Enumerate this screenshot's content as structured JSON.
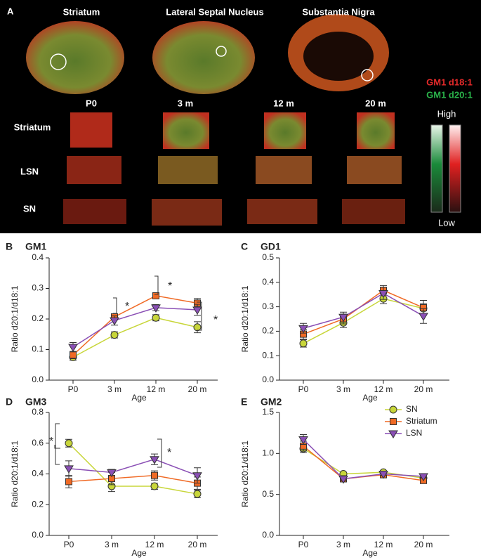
{
  "panel_a": {
    "label": "A",
    "regions": [
      "Striatum",
      "Lateral Septal Nucleus",
      "Substantia Nigra"
    ],
    "stains": [
      "GM1 d18:1",
      "GM1 d20:1"
    ],
    "ages": [
      "P0",
      "3 m",
      "12 m",
      "20 m"
    ],
    "rows": [
      "Striatum",
      "LSN",
      "SN"
    ],
    "scale": [
      "High",
      "Low"
    ]
  },
  "chart_data": [
    {
      "type": "line",
      "panel": "B",
      "title": "GM1",
      "x_label": "Age",
      "y_label": "Ratio d20:1/d18:1",
      "categories": [
        "P0",
        "3 m",
        "12 m",
        "20 m"
      ],
      "series": [
        {
          "color": "#c8d63a",
          "marker": "circle",
          "values": [
            0.075,
            0.148,
            0.204,
            0.173
          ],
          "errors": [
            0.01,
            0.01,
            0.01,
            0.018
          ]
        },
        {
          "color": "#f06a25",
          "marker": "square",
          "values": [
            0.082,
            0.207,
            0.276,
            0.252
          ],
          "errors": [
            0.012,
            0.01,
            0.008,
            0.015
          ]
        },
        {
          "color": "#8a4fb5",
          "marker": "triangle",
          "values": [
            0.108,
            0.195,
            0.237,
            0.23
          ],
          "errors": [
            0.015,
            0.015,
            0.01,
            0.018
          ]
        }
      ],
      "ylim": [
        0,
        0.4
      ],
      "yticks": [
        {
          "value": 0,
          "label": "0.0"
        },
        0.1,
        0.2,
        0.3,
        0.4
      ],
      "annotations": [
        "*",
        "*",
        "*"
      ]
    },
    {
      "type": "line",
      "panel": "C",
      "title": "GD1",
      "x_label": "Age",
      "y_label": "Ratio d20:1/d18:1",
      "categories": [
        "P0",
        "3 m",
        "12 m",
        "20 m"
      ],
      "series": [
        {
          "color": "#c8d63a",
          "marker": "circle",
          "values": [
            0.15,
            0.235,
            0.333,
            0.293
          ],
          "errors": [
            0.015,
            0.02,
            0.02,
            0.02
          ]
        },
        {
          "color": "#f06a25",
          "marker": "square",
          "values": [
            0.188,
            0.25,
            0.367,
            0.296
          ],
          "errors": [
            0.02,
            0.02,
            0.02,
            0.03
          ]
        },
        {
          "color": "#8a4fb5",
          "marker": "triangle",
          "values": [
            0.212,
            0.258,
            0.355,
            0.262
          ],
          "errors": [
            0.02,
            0.02,
            0.025,
            0.03
          ]
        }
      ],
      "ylim": [
        0,
        0.5
      ],
      "yticks": [
        {
          "value": 0,
          "label": "0.0"
        },
        0.1,
        0.2,
        0.3,
        0.4,
        0.5
      ]
    },
    {
      "type": "line",
      "panel": "D",
      "title": "GM3",
      "x_label": "Age",
      "y_label": "Ratio d20:1/d18:1",
      "categories": [
        "P0",
        "3 m",
        "12 m",
        "20 m"
      ],
      "series": [
        {
          "color": "#c8d63a",
          "marker": "circle",
          "values": [
            0.6,
            0.32,
            0.32,
            0.27
          ],
          "errors": [
            0.025,
            0.035,
            0.02,
            0.025
          ]
        },
        {
          "color": "#f06a25",
          "marker": "square",
          "values": [
            0.35,
            0.37,
            0.39,
            0.34
          ],
          "errors": [
            0.04,
            0.04,
            0.03,
            0.04
          ]
        },
        {
          "color": "#8a4fb5",
          "marker": "triangle",
          "values": [
            0.435,
            0.41,
            0.495,
            0.39
          ],
          "errors": [
            0.05,
            0.02,
            0.035,
            0.05
          ]
        }
      ],
      "ylim": [
        0,
        0.8
      ],
      "yticks": [
        {
          "value": 0,
          "label": "0.0"
        },
        0.2,
        0.4,
        0.6,
        0.8
      ],
      "annotations": [
        "*",
        "*"
      ]
    },
    {
      "type": "line",
      "panel": "E",
      "title": "GM2",
      "x_label": "Age",
      "y_label": "Ratio d20:1/d18:1",
      "categories": [
        "P0",
        "3 m",
        "12 m",
        "20 m"
      ],
      "series": [
        {
          "name": "SN",
          "color": "#c8d63a",
          "marker": "circle",
          "values": [
            1.06,
            0.75,
            0.77,
            0.7
          ],
          "errors": [
            0.05,
            0.02,
            0.02,
            0.02
          ]
        },
        {
          "name": "Striatum",
          "color": "#f06a25",
          "marker": "square",
          "values": [
            1.09,
            0.69,
            0.74,
            0.67
          ],
          "errors": [
            0.06,
            0.02,
            0.02,
            0.02
          ]
        },
        {
          "name": "LSN",
          "color": "#8a4fb5",
          "marker": "triangle",
          "values": [
            1.17,
            0.69,
            0.75,
            0.72
          ],
          "errors": [
            0.06,
            0.02,
            0.02,
            0.02
          ]
        }
      ],
      "ylim": [
        0,
        1.5
      ],
      "yticks": [
        {
          "value": 0,
          "label": "0.0"
        },
        0.5,
        {
          "value": 1,
          "label": "1.0"
        },
        1.5
      ],
      "legend": "upper-right"
    }
  ]
}
